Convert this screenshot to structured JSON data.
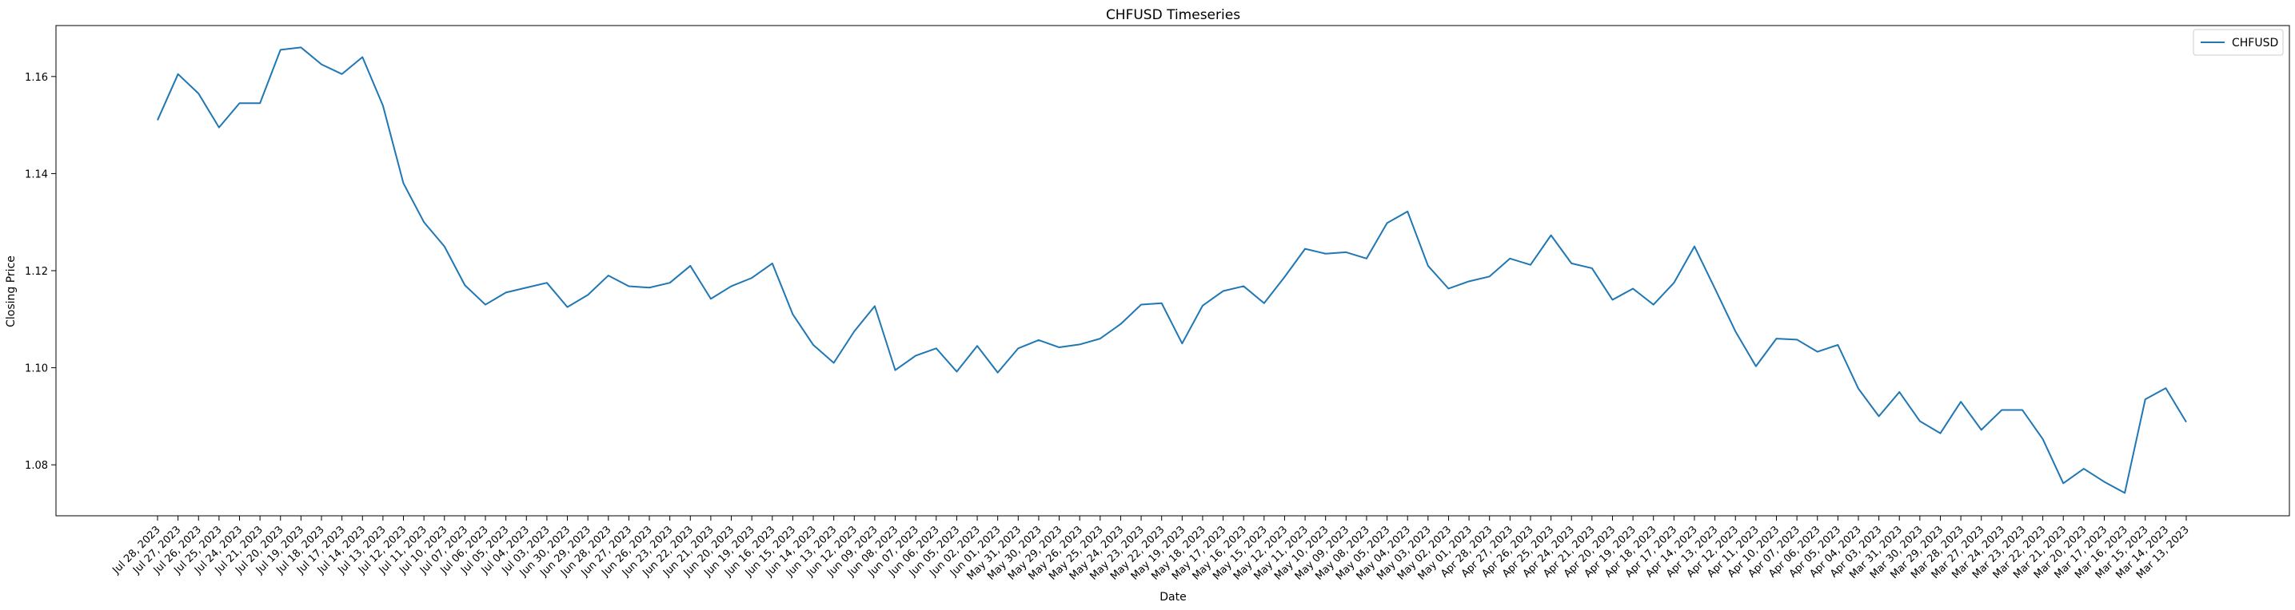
{
  "chart_data": {
    "type": "line",
    "title": "CHFUSD Timeseries",
    "xlabel": "Date",
    "ylabel": "Closing Price",
    "ylim": [
      1.0695,
      1.1705
    ],
    "yticks": [
      "1.08",
      "1.10",
      "1.12",
      "1.14",
      "1.16"
    ],
    "legend_position": "top-right",
    "grid": false,
    "colors": {
      "series": "#1f77b4",
      "axes": "#000000",
      "background": "#ffffff"
    },
    "x": [
      "Jul 28, 2023",
      "Jul 27, 2023",
      "Jul 26, 2023",
      "Jul 25, 2023",
      "Jul 24, 2023",
      "Jul 21, 2023",
      "Jul 20, 2023",
      "Jul 19, 2023",
      "Jul 18, 2023",
      "Jul 17, 2023",
      "Jul 14, 2023",
      "Jul 13, 2023",
      "Jul 12, 2023",
      "Jul 11, 2023",
      "Jul 10, 2023",
      "Jul 07, 2023",
      "Jul 06, 2023",
      "Jul 05, 2023",
      "Jul 04, 2023",
      "Jul 03, 2023",
      "Jun 30, 2023",
      "Jun 29, 2023",
      "Jun 28, 2023",
      "Jun 27, 2023",
      "Jun 26, 2023",
      "Jun 23, 2023",
      "Jun 22, 2023",
      "Jun 21, 2023",
      "Jun 20, 2023",
      "Jun 19, 2023",
      "Jun 16, 2023",
      "Jun 15, 2023",
      "Jun 14, 2023",
      "Jun 13, 2023",
      "Jun 12, 2023",
      "Jun 09, 2023",
      "Jun 08, 2023",
      "Jun 07, 2023",
      "Jun 06, 2023",
      "Jun 05, 2023",
      "Jun 02, 2023",
      "Jun 01, 2023",
      "May 31, 2023",
      "May 30, 2023",
      "May 29, 2023",
      "May 26, 2023",
      "May 25, 2023",
      "May 24, 2023",
      "May 23, 2023",
      "May 22, 2023",
      "May 19, 2023",
      "May 18, 2023",
      "May 17, 2023",
      "May 16, 2023",
      "May 15, 2023",
      "May 12, 2023",
      "May 11, 2023",
      "May 10, 2023",
      "May 09, 2023",
      "May 08, 2023",
      "May 05, 2023",
      "May 04, 2023",
      "May 03, 2023",
      "May 02, 2023",
      "May 01, 2023",
      "Apr 28, 2023",
      "Apr 27, 2023",
      "Apr 26, 2023",
      "Apr 25, 2023",
      "Apr 24, 2023",
      "Apr 21, 2023",
      "Apr 20, 2023",
      "Apr 19, 2023",
      "Apr 18, 2023",
      "Apr 17, 2023",
      "Apr 14, 2023",
      "Apr 13, 2023",
      "Apr 12, 2023",
      "Apr 11, 2023",
      "Apr 10, 2023",
      "Apr 07, 2023",
      "Apr 06, 2023",
      "Apr 05, 2023",
      "Apr 04, 2023",
      "Apr 03, 2023",
      "Mar 31, 2023",
      "Mar 30, 2023",
      "Mar 29, 2023",
      "Mar 28, 2023",
      "Mar 27, 2023",
      "Mar 24, 2023",
      "Mar 23, 2023",
      "Mar 22, 2023",
      "Mar 21, 2023",
      "Mar 20, 2023",
      "Mar 17, 2023",
      "Mar 16, 2023",
      "Mar 15, 2023",
      "Mar 14, 2023",
      "Mar 13, 2023"
    ],
    "series": [
      {
        "name": "CHFUSD",
        "values": [
          1.151,
          1.1605,
          1.1565,
          1.1495,
          1.1545,
          1.1545,
          1.1655,
          1.166,
          1.1625,
          1.1605,
          1.164,
          1.154,
          1.138,
          1.13,
          1.125,
          1.117,
          1.113,
          1.1155,
          1.1165,
          1.1175,
          1.1125,
          1.115,
          1.119,
          1.1168,
          1.1165,
          1.1175,
          1.121,
          1.1142,
          1.1168,
          1.1185,
          1.1215,
          1.111,
          1.1047,
          1.101,
          1.1075,
          1.1127,
          1.0995,
          1.1025,
          1.104,
          1.0992,
          1.1045,
          1.099,
          1.104,
          1.1057,
          1.1042,
          1.1048,
          1.106,
          1.109,
          1.113,
          1.1133,
          1.105,
          1.1128,
          1.1158,
          1.1168,
          1.1133,
          1.1187,
          1.1245,
          1.1235,
          1.1238,
          1.1225,
          1.1298,
          1.1322,
          1.121,
          1.1163,
          1.1178,
          1.1188,
          1.1225,
          1.1212,
          1.1273,
          1.1215,
          1.1205,
          1.114,
          1.1163,
          1.113,
          1.1175,
          1.125,
          1.1163,
          1.1075,
          1.1003,
          1.106,
          1.1058,
          1.1033,
          1.1047,
          1.0957,
          1.09,
          1.095,
          1.089,
          1.0865,
          1.093,
          1.0872,
          1.0913,
          1.0913,
          1.0853,
          1.0762,
          1.0792,
          1.0765,
          1.0742,
          1.0935,
          1.0958,
          1.0888
        ]
      }
    ]
  }
}
